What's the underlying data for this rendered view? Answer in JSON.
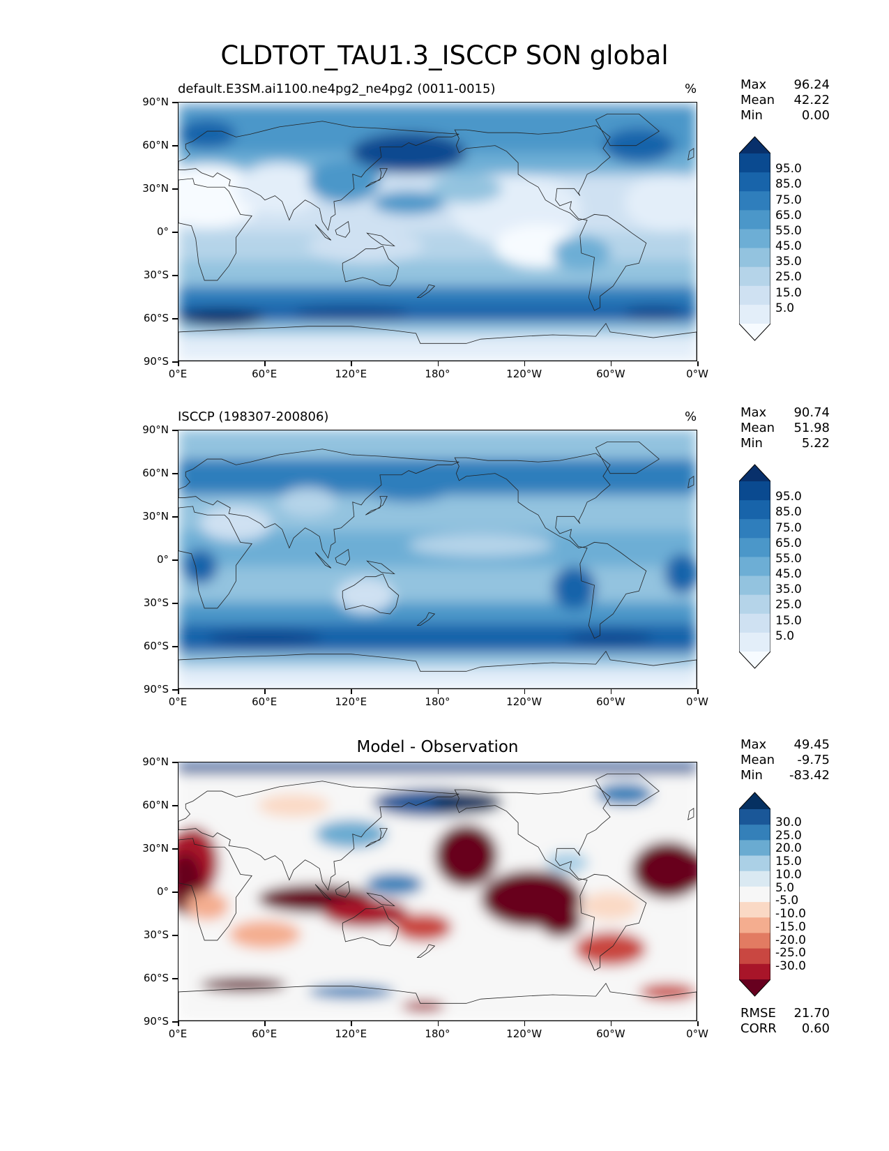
{
  "title": "CLDTOT_TAU1.3_ISCCP SON global",
  "lat_labels": [
    "90°N",
    "60°N",
    "30°N",
    "0°",
    "30°S",
    "60°S",
    "90°S"
  ],
  "lon_labels": [
    "0°E",
    "60°E",
    "120°E",
    "180°",
    "120°W",
    "60°W",
    "0°W"
  ],
  "panels": [
    {
      "title": "default.E3SM.ai1100.ne4pg2_ne4pg2 (0011-0015)",
      "units": "%",
      "stats": {
        "max": "96.24",
        "mean": "42.22",
        "min": "0.00"
      },
      "colorbar": [
        "95.0",
        "85.0",
        "75.0",
        "65.0",
        "55.0",
        "45.0",
        "35.0",
        "25.0",
        "15.0",
        "5.0"
      ]
    },
    {
      "title": "ISCCP (198307-200806)",
      "units": "%",
      "stats": {
        "max": "90.74",
        "mean": "51.98",
        "min": "5.22"
      },
      "colorbar": [
        "95.0",
        "85.0",
        "75.0",
        "65.0",
        "55.0",
        "45.0",
        "35.0",
        "25.0",
        "15.0",
        "5.0"
      ]
    },
    {
      "title": "Model - Observation",
      "units": "",
      "stats": {
        "max": "49.45",
        "mean": "-9.75",
        "min": "-83.42"
      },
      "colorbar": [
        "30.0",
        "25.0",
        "20.0",
        "15.0",
        "10.0",
        "5.0",
        "-5.0",
        "-10.0",
        "-15.0",
        "-20.0",
        "-25.0",
        "-30.0"
      ],
      "metrics": {
        "rmse_label": "RMSE",
        "rmse": "21.70",
        "corr_label": "CORR",
        "corr": "0.60"
      }
    }
  ],
  "stat_labels": {
    "max": "Max",
    "mean": "Mean",
    "min": "Min"
  },
  "colors": {
    "blues": [
      "#f7fbff",
      "#e3eef9",
      "#cfe1f2",
      "#b5d4e9",
      "#93c3df",
      "#6daed5",
      "#4b97c9",
      "#2f7ebc",
      "#1864aa",
      "#0a4a90",
      "#08306b"
    ],
    "diverging": [
      "#67001f",
      "#a81529",
      "#c94741",
      "#e27b62",
      "#f4ad8f",
      "#fad9c5",
      "#f7f7f7",
      "#dae9f2",
      "#abd0e6",
      "#6aabd1",
      "#3480b9",
      "#1a5798",
      "#053061"
    ]
  }
}
